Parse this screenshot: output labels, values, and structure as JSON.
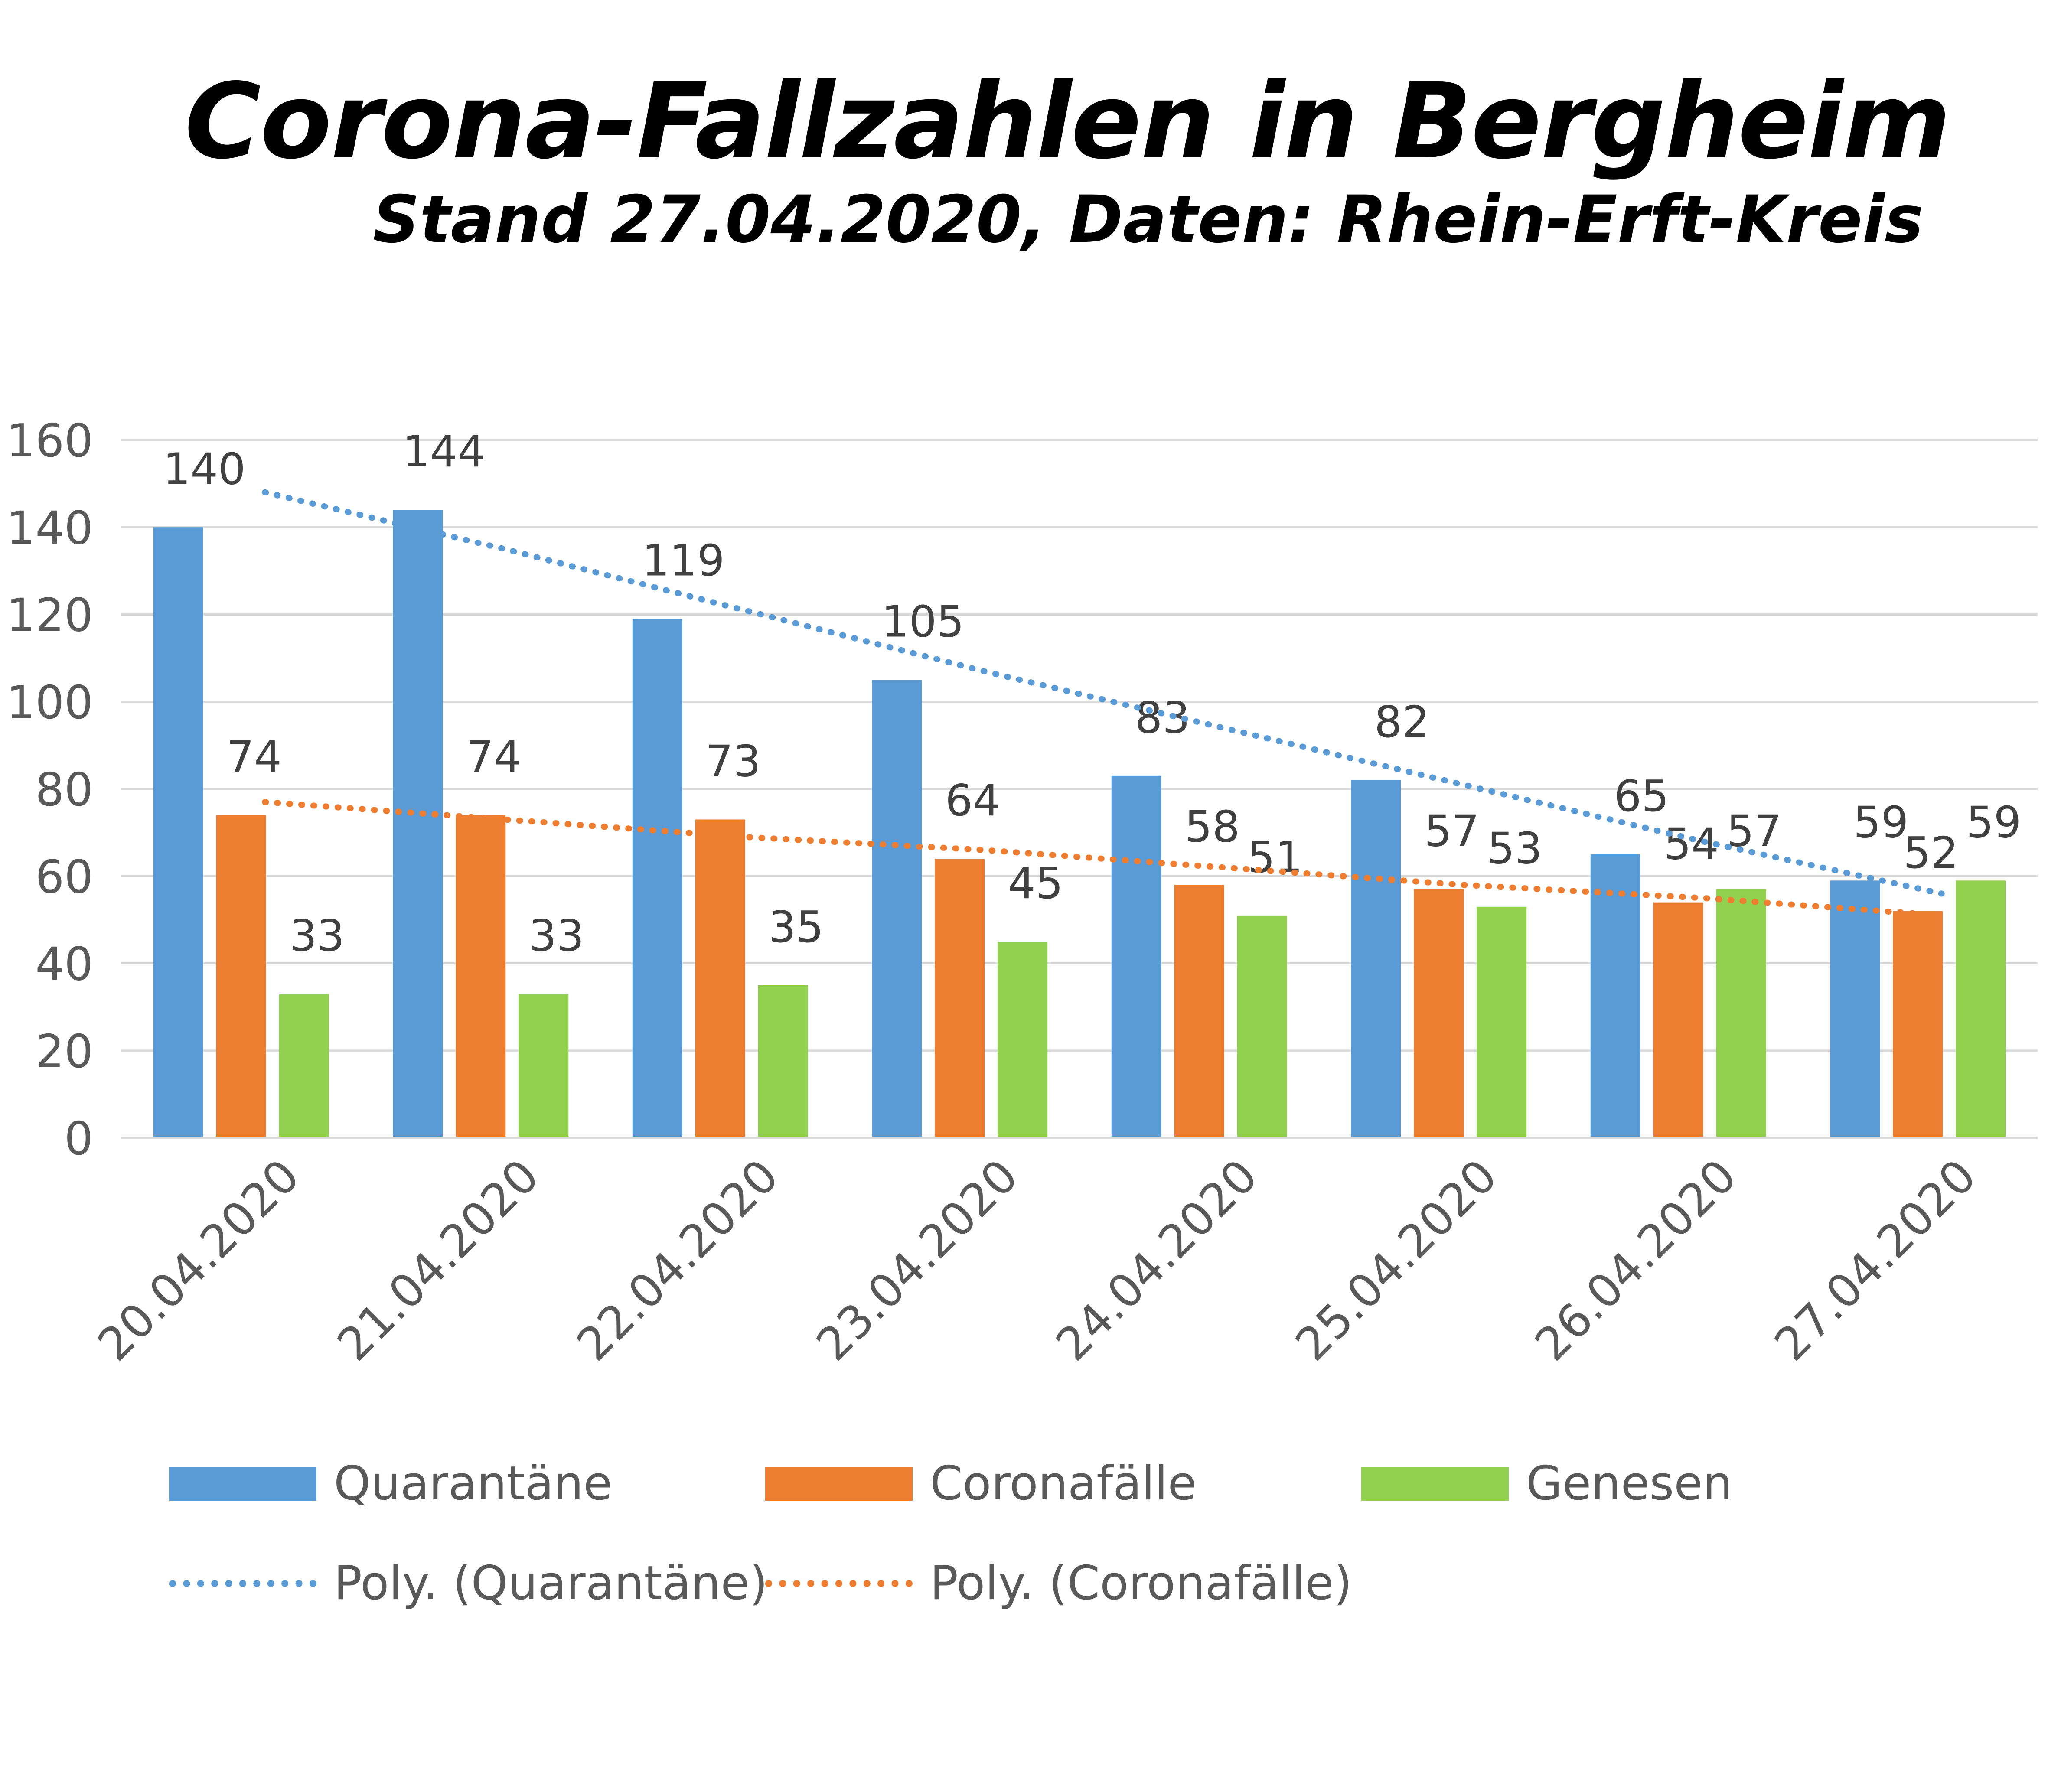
{
  "title": "Corona-Fallzahlen in Bergheim",
  "subtitle": "Stand 27.04.2020, Daten: Rhein-Erft-Kreis",
  "colors": {
    "quarantaene": "#5b9bd5",
    "coronafaelle": "#ed7d31",
    "genesen": "#92d050",
    "grid": "#d9d9d9",
    "axis_text": "#595959",
    "label_text": "#404040"
  },
  "legend": {
    "quarantaene": "Quarantäne",
    "coronafaelle": "Coronafälle",
    "genesen": "Genesen",
    "poly_quarantaene": "Poly. (Quarantäne)",
    "poly_coronafaelle": "Poly. (Coronafälle)"
  },
  "chart_data": {
    "type": "bar",
    "categories": [
      "20.04.2020",
      "21.04.2020",
      "22.04.2020",
      "23.04.2020",
      "24.04.2020",
      "25.04.2020",
      "26.04.2020",
      "27.04.2020"
    ],
    "series": [
      {
        "name": "Quarantäne",
        "values": [
          140,
          144,
          119,
          105,
          83,
          82,
          65,
          59
        ]
      },
      {
        "name": "Coronafälle",
        "values": [
          74,
          74,
          73,
          64,
          58,
          57,
          54,
          52
        ]
      },
      {
        "name": "Genesen",
        "values": [
          33,
          33,
          35,
          45,
          51,
          53,
          57,
          59
        ]
      }
    ],
    "trendlines": [
      {
        "name": "Poly. (Quarantäne)",
        "values": [
          148,
          135,
          121,
          107,
          94,
          81,
          68,
          56
        ]
      },
      {
        "name": "Poly. (Coronafälle)",
        "values": [
          77,
          73,
          69,
          66,
          62,
          58,
          55,
          51
        ]
      }
    ],
    "ylim": [
      0,
      160
    ],
    "yticks": [
      0,
      20,
      40,
      60,
      80,
      100,
      120,
      140,
      160
    ],
    "grid": true,
    "legend_position": "bottom"
  }
}
